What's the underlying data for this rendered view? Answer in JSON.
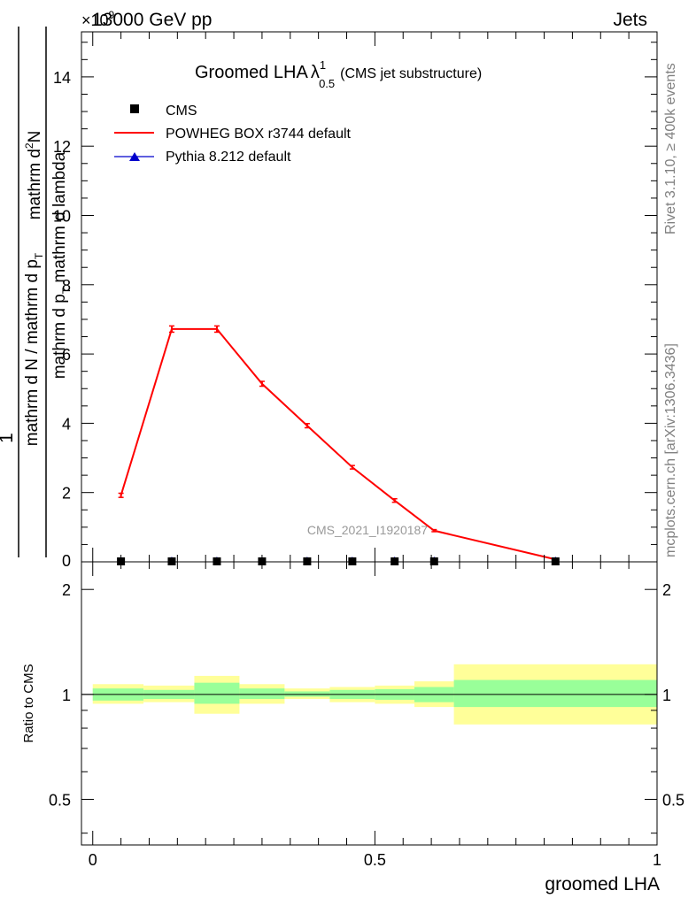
{
  "header": {
    "energy_label": "13000 GeV pp",
    "process_label": "Jets",
    "exponent_label": "×10",
    "exponent_power": "9"
  },
  "title": {
    "main": "Groomed LHA",
    "lambda": "λ",
    "sup": "1",
    "sub": "0.5",
    "note": "(CMS jet substructure)"
  },
  "side_labels": {
    "rivet": "Rivet 3.1.10, ≥ 400k events",
    "mcplots": "mcplots.cern.ch [arXiv:1306.3436]"
  },
  "watermark": "CMS_2021_I1920187",
  "y_label": {
    "num_left": "1",
    "num_right": "mathrm d",
    "num_right_sup": "2",
    "num_right_tail": "N",
    "den_left": "mathrm d N / mathrm d p",
    "den_left_sub": "T",
    "den_right": "mathrm d p",
    "den_right_sub": "T",
    "den_right_tail": " mathrm d lambda"
  },
  "ratio_ylabel": "Ratio to CMS",
  "xlabel": "groomed LHA",
  "colors": {
    "powheg": "#ff0000",
    "pythia": "#0000cc",
    "cms": "#000000",
    "band_outer": "#ffff99",
    "band_inner": "#99ff99"
  },
  "chart_data": {
    "type": "line",
    "x_ticks": [
      "0",
      "0.5",
      "1"
    ],
    "x_tick_values": [
      0,
      0.5,
      1
    ],
    "xlim": [
      -0.02,
      1.0
    ],
    "main": {
      "ylim": [
        0,
        15.3
      ],
      "y_ticks": [
        "2",
        "4",
        "6",
        "8",
        "10",
        "12",
        "14"
      ],
      "y_tick_values": [
        2,
        4,
        6,
        8,
        10,
        12,
        14
      ],
      "y_zero_label": "0",
      "unit_multiplier": "1e9"
    },
    "ratio": {
      "ylog": true,
      "ylim": [
        0.37,
        2.4
      ],
      "y_ticks": [
        "0.5",
        "1",
        "2"
      ],
      "y_tick_values": [
        0.5,
        1,
        2
      ]
    },
    "legend": [
      "CMS",
      "POWHEG BOX r3744 default",
      "Pythia 8.212 default"
    ],
    "bins": [
      {
        "lo": 0.0,
        "hi": 0.09
      },
      {
        "lo": 0.09,
        "hi": 0.18
      },
      {
        "lo": 0.18,
        "hi": 0.26
      },
      {
        "lo": 0.26,
        "hi": 0.34
      },
      {
        "lo": 0.34,
        "hi": 0.42
      },
      {
        "lo": 0.42,
        "hi": 0.5
      },
      {
        "lo": 0.5,
        "hi": 0.57
      },
      {
        "lo": 0.57,
        "hi": 0.64
      },
      {
        "lo": 0.64,
        "hi": 1.0
      }
    ],
    "series": [
      {
        "name": "POWHEG BOX r3744 default",
        "x": [
          0.05,
          0.14,
          0.22,
          0.3,
          0.38,
          0.46,
          0.535,
          0.605,
          0.82
        ],
        "y": [
          1.92,
          6.72,
          6.72,
          5.14,
          3.93,
          2.73,
          1.77,
          0.9,
          0.07
        ],
        "err": [
          0.06,
          0.09,
          0.09,
          0.07,
          0.06,
          0.05,
          0.05,
          0.03,
          0.01
        ]
      },
      {
        "name": "CMS",
        "x": [
          0.05,
          0.14,
          0.22,
          0.3,
          0.38,
          0.46,
          0.535,
          0.605,
          0.82
        ],
        "y": [
          0.0,
          0.0,
          0.0,
          0.0,
          0.0,
          0.0,
          0.0,
          0.0,
          0.0
        ]
      },
      {
        "name": "Pythia 8.212 default",
        "x": [
          0.05,
          0.14,
          0.22,
          0.3,
          0.38,
          0.46,
          0.535,
          0.605,
          0.82
        ],
        "y": [
          0.0,
          0.0,
          0.0,
          0.0,
          0.0,
          0.0,
          0.0,
          0.0,
          0.0
        ]
      }
    ],
    "ratio_bands": {
      "outer": [
        [
          0.94,
          1.07
        ],
        [
          0.95,
          1.06
        ],
        [
          0.88,
          1.13
        ],
        [
          0.94,
          1.07
        ],
        [
          0.97,
          1.04
        ],
        [
          0.95,
          1.05
        ],
        [
          0.94,
          1.06
        ],
        [
          0.92,
          1.09
        ],
        [
          0.82,
          1.22
        ]
      ],
      "inner": [
        [
          0.96,
          1.04
        ],
        [
          0.97,
          1.03
        ],
        [
          0.94,
          1.08
        ],
        [
          0.97,
          1.04
        ],
        [
          0.985,
          1.02
        ],
        [
          0.97,
          1.03
        ],
        [
          0.965,
          1.035
        ],
        [
          0.95,
          1.05
        ],
        [
          0.92,
          1.1
        ]
      ]
    }
  }
}
